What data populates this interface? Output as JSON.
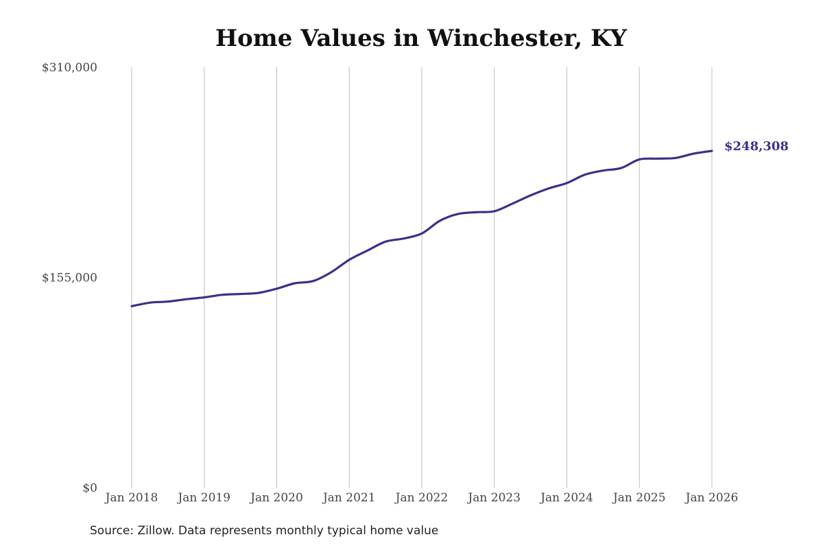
{
  "title": "Home Values in Winchester, KY",
  "source": "Source: Zillow. Data represents monthly typical home value",
  "chart_data": {
    "type": "line",
    "title": "Home Values in Winchester, KY",
    "xlabel": "",
    "ylabel": "",
    "x_tick_labels": [
      "Jan 2018",
      "Jan 2019",
      "Jan 2020",
      "Jan 2021",
      "Jan 2022",
      "Jan 2023",
      "Jan 2024",
      "Jan 2025",
      "Jan 2026"
    ],
    "y_tick_labels": [
      "$0",
      "$155,000",
      "$310,000"
    ],
    "y_ticks": [
      0,
      155000,
      310000
    ],
    "ylim": [
      0,
      310000
    ],
    "xlim": [
      "2018-01",
      "2026-01"
    ],
    "grid": "vertical lines at x ticks",
    "line_color": "#3a3189",
    "end_label": "$248,308",
    "series": [
      {
        "points": [
          [
            "2018-01",
            133800
          ],
          [
            "2018-04",
            136400
          ],
          [
            "2018-07",
            137200
          ],
          [
            "2018-10",
            138900
          ],
          [
            "2019-01",
            140300
          ],
          [
            "2019-04",
            142200
          ],
          [
            "2019-07",
            142800
          ],
          [
            "2019-10",
            143600
          ],
          [
            "2020-01",
            146700
          ],
          [
            "2020-04",
            150700
          ],
          [
            "2020-07",
            152300
          ],
          [
            "2020-10",
            158800
          ],
          [
            "2021-01",
            168000
          ],
          [
            "2021-04",
            174800
          ],
          [
            "2021-07",
            181400
          ],
          [
            "2021-10",
            183700
          ],
          [
            "2022-01",
            187400
          ],
          [
            "2022-04",
            196800
          ],
          [
            "2022-07",
            201800
          ],
          [
            "2022-10",
            203100
          ],
          [
            "2023-01",
            203800
          ],
          [
            "2023-04",
            209400
          ],
          [
            "2023-07",
            215500
          ],
          [
            "2023-10",
            220600
          ],
          [
            "2024-01",
            224600
          ],
          [
            "2024-04",
            230800
          ],
          [
            "2024-07",
            233800
          ],
          [
            "2024-10",
            235700
          ],
          [
            "2025-01",
            242000
          ],
          [
            "2025-04",
            242600
          ],
          [
            "2025-07",
            243100
          ],
          [
            "2025-10",
            246300
          ],
          [
            "2026-01",
            248308
          ]
        ]
      }
    ]
  }
}
